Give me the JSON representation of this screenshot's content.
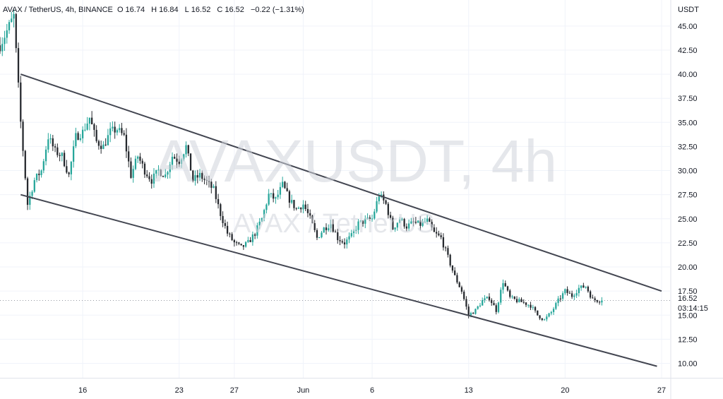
{
  "legend": {
    "symbol": "AVAX / TetherUS, 4h, BINANCE",
    "open_label": "O",
    "open": "16.74",
    "high_label": "H",
    "high": "16.84",
    "low_label": "L",
    "low": "16.52",
    "close_label": "C",
    "close": "16.52",
    "change": "−0.22 (−1.31%)"
  },
  "watermark": {
    "title": "AVAXUSDT, 4h",
    "subtitle": "AVAX / TetherUS"
  },
  "price_axis": {
    "currency": "USDT",
    "last_price": "16.52",
    "countdown": "03:14:15"
  },
  "colors": {
    "up": "#26a69a",
    "down": "#26292e",
    "trendline": "#434651",
    "grid": "#f0f3fa",
    "axis_text": "#131722"
  },
  "chart_data": {
    "type": "candlestick",
    "ylim": [
      8.5,
      45.5
    ],
    "y_ticks": [
      "10.00",
      "12.50",
      "15.00",
      "17.50",
      "20.00",
      "22.50",
      "25.00",
      "27.50",
      "30.00",
      "32.50",
      "35.00",
      "37.50",
      "40.00",
      "42.50",
      "45.00"
    ],
    "x_ticks": [
      {
        "label": "16",
        "date": "2022-05-16"
      },
      {
        "label": "23",
        "date": "2022-05-23"
      },
      {
        "label": "27",
        "date": "2022-05-27"
      },
      {
        "label": "Jun",
        "date": "2022-06-01"
      },
      {
        "label": "6",
        "date": "2022-06-06"
      },
      {
        "label": "13",
        "date": "2022-06-13"
      },
      {
        "label": "20",
        "date": "2022-06-20"
      },
      {
        "label": "27",
        "date": "2022-06-27"
      }
    ],
    "xlim": [
      "2022-05-10",
      "2022-06-27 16:00"
    ],
    "close_path": [
      [
        "2022-05-10",
        43.0
      ],
      [
        "2022-05-11",
        46.0
      ],
      [
        "2022-05-11 12:00",
        35.0
      ],
      [
        "2022-05-12",
        26.5
      ],
      [
        "2022-05-12 12:00",
        29.0
      ],
      [
        "2022-05-13",
        30.0
      ],
      [
        "2022-05-13 12:00",
        33.5
      ],
      [
        "2022-05-14",
        32.0
      ],
      [
        "2022-05-14 12:00",
        31.5
      ],
      [
        "2022-05-15",
        29.5
      ],
      [
        "2022-05-15 12:00",
        33.5
      ],
      [
        "2022-05-16",
        34.0
      ],
      [
        "2022-05-16 12:00",
        35.5
      ],
      [
        "2022-05-17",
        33.0
      ],
      [
        "2022-05-17 12:00",
        32.5
      ],
      [
        "2022-05-18",
        34.0
      ],
      [
        "2022-05-18 12:00",
        34.3
      ],
      [
        "2022-05-19",
        33.5
      ],
      [
        "2022-05-19 12:00",
        29.5
      ],
      [
        "2022-05-20",
        31.5
      ],
      [
        "2022-05-20 12:00",
        30.0
      ],
      [
        "2022-05-21",
        29.0
      ],
      [
        "2022-05-21 12:00",
        30.0
      ],
      [
        "2022-05-22",
        29.5
      ],
      [
        "2022-05-22 12:00",
        31.5
      ],
      [
        "2022-05-23",
        31.0
      ],
      [
        "2022-05-23 12:00",
        32.5
      ],
      [
        "2022-05-24",
        29.0
      ],
      [
        "2022-05-24 12:00",
        29.5
      ],
      [
        "2022-05-25",
        28.8
      ],
      [
        "2022-05-25 12:00",
        28.0
      ],
      [
        "2022-05-26",
        25.5
      ],
      [
        "2022-05-26 12:00",
        23.5
      ],
      [
        "2022-05-27",
        22.5
      ],
      [
        "2022-05-27 12:00",
        22.0
      ],
      [
        "2022-05-28",
        22.5
      ],
      [
        "2022-05-28 12:00",
        23.5
      ],
      [
        "2022-05-29",
        25.0
      ],
      [
        "2022-05-29 12:00",
        27.5
      ],
      [
        "2022-05-30",
        27.0
      ],
      [
        "2022-05-30 12:00",
        28.5
      ],
      [
        "2022-05-31",
        27.0
      ],
      [
        "2022-05-31 12:00",
        26.0
      ],
      [
        "2022-06-01",
        26.5
      ],
      [
        "2022-06-01 12:00",
        25.0
      ],
      [
        "2022-06-02",
        23.0
      ],
      [
        "2022-06-02 12:00",
        24.0
      ],
      [
        "2022-06-03",
        24.5
      ],
      [
        "2022-06-03 12:00",
        23.0
      ],
      [
        "2022-06-04",
        22.5
      ],
      [
        "2022-06-04 12:00",
        23.2
      ],
      [
        "2022-06-05",
        24.5
      ],
      [
        "2022-06-05 12:00",
        24.8
      ],
      [
        "2022-06-06",
        25.0
      ],
      [
        "2022-06-06 12:00",
        27.5
      ],
      [
        "2022-06-07",
        26.5
      ],
      [
        "2022-06-07 12:00",
        24.0
      ],
      [
        "2022-06-08",
        25.0
      ],
      [
        "2022-06-08 12:00",
        24.2
      ],
      [
        "2022-06-09",
        24.6
      ],
      [
        "2022-06-09 12:00",
        24.4
      ],
      [
        "2022-06-10",
        24.8
      ],
      [
        "2022-06-10 12:00",
        23.5
      ],
      [
        "2022-06-11",
        23.0
      ],
      [
        "2022-06-11 12:00",
        21.0
      ],
      [
        "2022-06-12",
        19.0
      ],
      [
        "2022-06-12 12:00",
        17.5
      ],
      [
        "2022-06-13",
        15.0
      ],
      [
        "2022-06-13 12:00",
        15.5
      ],
      [
        "2022-06-14",
        16.5
      ],
      [
        "2022-06-14 12:00",
        16.8
      ],
      [
        "2022-06-15",
        15.5
      ],
      [
        "2022-06-15 12:00",
        18.5
      ],
      [
        "2022-06-16",
        16.8
      ],
      [
        "2022-06-16 12:00",
        16.5
      ],
      [
        "2022-06-17",
        16.3
      ],
      [
        "2022-06-17 12:00",
        16.0
      ],
      [
        "2022-06-18",
        15.0
      ],
      [
        "2022-06-18 12:00",
        14.5
      ],
      [
        "2022-06-19",
        15.3
      ],
      [
        "2022-06-19 12:00",
        16.5
      ],
      [
        "2022-06-20",
        17.5
      ],
      [
        "2022-06-20 12:00",
        17.0
      ],
      [
        "2022-06-21",
        17.8
      ],
      [
        "2022-06-21 12:00",
        18.0
      ],
      [
        "2022-06-22",
        16.6
      ],
      [
        "2022-06-22 16:00",
        16.52
      ]
    ],
    "trendlines": [
      {
        "start": [
          "2022-05-11 12:00",
          40.0
        ],
        "end": [
          "2022-06-27",
          17.5
        ]
      },
      {
        "start": [
          "2022-05-11 12:00",
          27.5
        ],
        "end": [
          "2022-06-26 16:00",
          9.7
        ]
      }
    ],
    "last_close": 16.52,
    "grid": true
  }
}
